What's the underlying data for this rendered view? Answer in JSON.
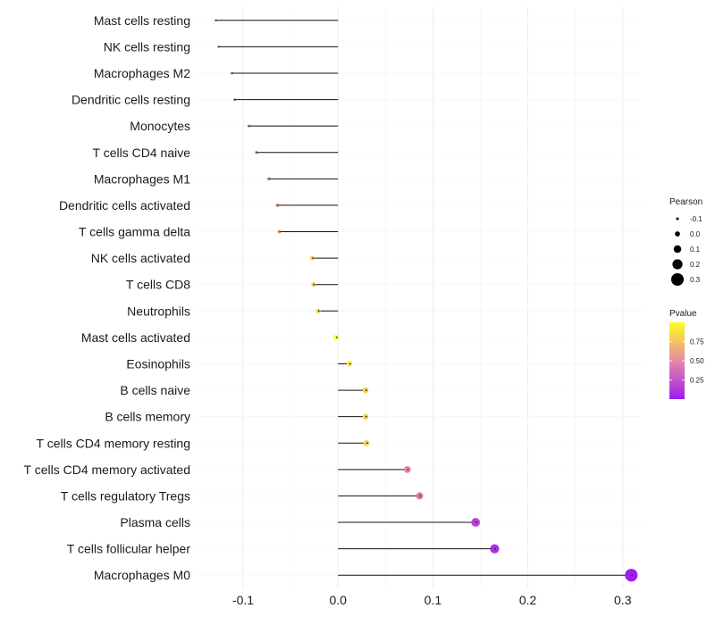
{
  "chart_data": {
    "type": "lollipop",
    "categories": [
      "Mast cells resting",
      "NK cells resting",
      "Macrophages M2",
      "Dendritic cells resting",
      "Monocytes",
      "T cells CD4 naive",
      "Macrophages M1",
      "Dendritic cells activated",
      "T cells gamma delta",
      "NK cells activated",
      "T cells CD8",
      "Neutrophils",
      "Mast cells activated",
      "Eosinophils",
      "B cells naive",
      "B cells memory",
      "T cells CD4 memory resting",
      "T cells CD4 memory activated",
      "T cells regulatory  Tregs ",
      "Plasma cells",
      "T cells follicular helper",
      "Macrophages M0"
    ],
    "values": [
      -0.129,
      -0.126,
      -0.112,
      -0.109,
      -0.094,
      -0.086,
      -0.073,
      -0.064,
      -0.062,
      -0.027,
      -0.026,
      -0.021,
      -0.002,
      0.012,
      0.029,
      0.029,
      0.03,
      0.073,
      0.086,
      0.145,
      0.165,
      0.309
    ],
    "pvalues": [
      0.16,
      0.17,
      0.25,
      0.26,
      0.4,
      0.46,
      0.55,
      0.62,
      0.64,
      0.8,
      0.81,
      0.85,
      0.99,
      0.91,
      0.82,
      0.82,
      0.8,
      0.48,
      0.42,
      0.17,
      0.09,
      0.0
    ],
    "x_ticks": [
      -0.1,
      0.0,
      0.1,
      0.2,
      0.3
    ],
    "x_tick_labels": [
      "-0.1",
      "0.0",
      "0.1",
      "0.2",
      "0.3"
    ],
    "xlim": [
      -0.149,
      0.32
    ],
    "size_legend": {
      "title": "Pearson",
      "values": [
        -0.1,
        0.0,
        0.1,
        0.2,
        0.3
      ],
      "labels": [
        "-0.1",
        "0.0",
        "0.1",
        "0.2",
        "0.3"
      ]
    },
    "color_legend": {
      "title": "Pvalue",
      "ticks": [
        0.75,
        0.5,
        0.25
      ],
      "labels": [
        "0.75",
        "0.50",
        "0.25"
      ],
      "range": [
        0,
        1
      ],
      "low_color": "#a01cf0",
      "mid_color": "#e48aa4",
      "high_color": "#fefe1e"
    },
    "grid": true,
    "title": "",
    "xlabel": "",
    "ylabel": ""
  }
}
